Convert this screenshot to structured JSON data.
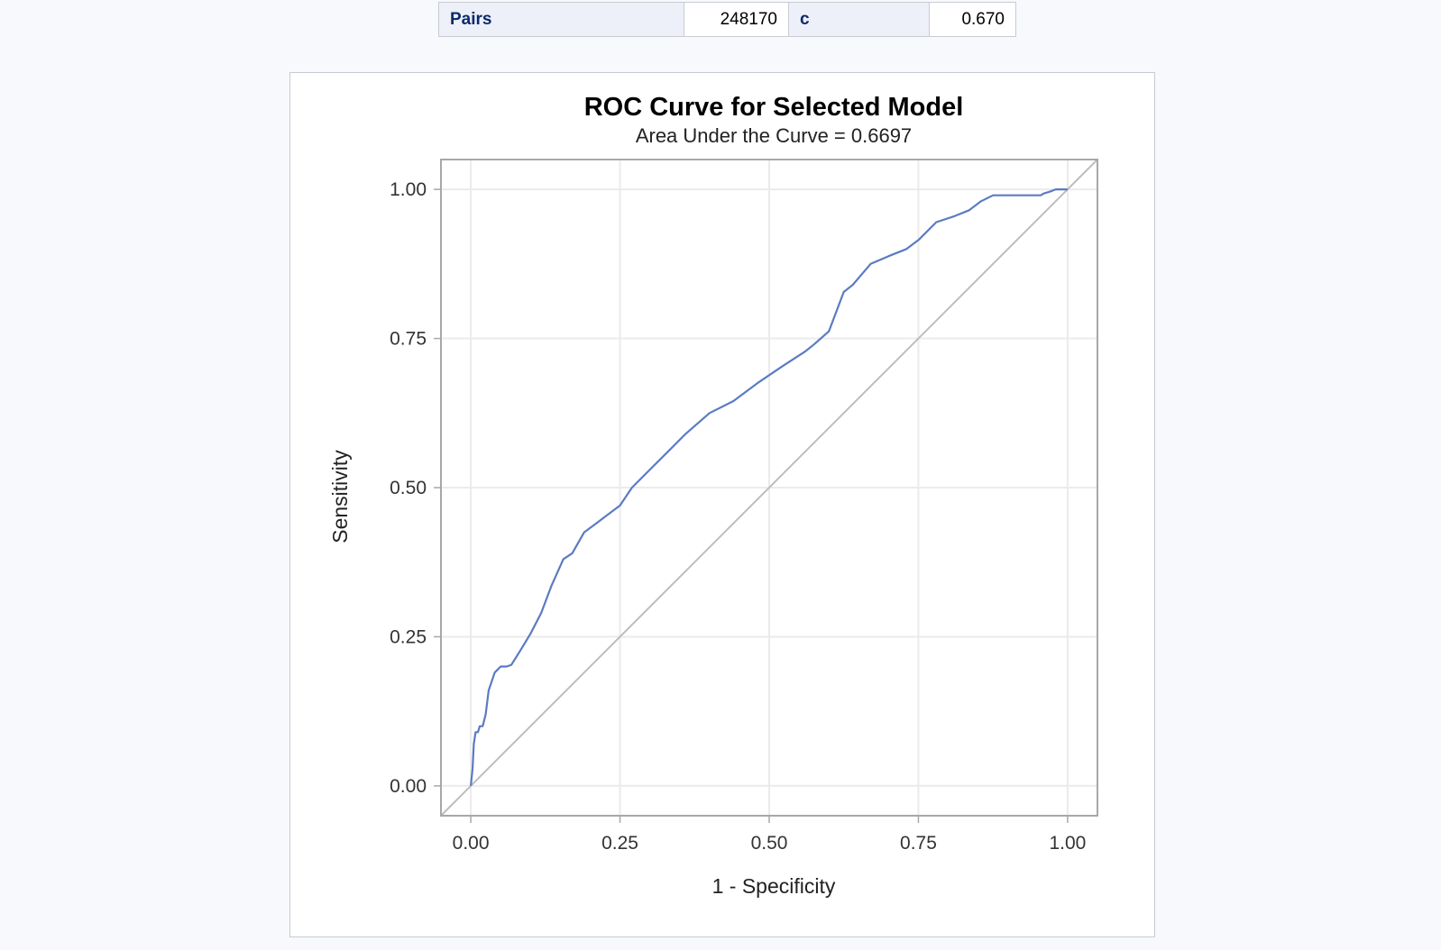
{
  "stats_table": {
    "pairs_label": "Pairs",
    "pairs_value": "248170",
    "c_label": "c",
    "c_value": "0.670"
  },
  "colors": {
    "roc_line": "#5b7bc2",
    "diagonal": "#bdbdbd",
    "grid": "#ebebeb",
    "axis_frame": "#a8a8a8"
  },
  "chart_data": {
    "type": "line",
    "title": "ROC Curve for Selected Model",
    "subtitle": "Area Under the Curve = 0.6697",
    "xlabel": "1 - Specificity",
    "ylabel": "Sensitivity",
    "xlim": [
      -0.05,
      1.05
    ],
    "ylim": [
      -0.05,
      1.05
    ],
    "xticks": [
      "0.00",
      "0.25",
      "0.50",
      "0.75",
      "1.00"
    ],
    "yticks": [
      "0.00",
      "0.25",
      "0.50",
      "0.75",
      "1.00"
    ],
    "grid": true,
    "series": [
      {
        "x": [
          0.0,
          0.003,
          0.005,
          0.008,
          0.012,
          0.015,
          0.02,
          0.025,
          0.03,
          0.04,
          0.05,
          0.06,
          0.068,
          0.085,
          0.1,
          0.118,
          0.135,
          0.155,
          0.17,
          0.19,
          0.21,
          0.23,
          0.25,
          0.27,
          0.3,
          0.33,
          0.36,
          0.4,
          0.44,
          0.48,
          0.52,
          0.56,
          0.575,
          0.6,
          0.625,
          0.64,
          0.67,
          0.7,
          0.73,
          0.75,
          0.78,
          0.81,
          0.835,
          0.855,
          0.875,
          0.9,
          0.94,
          0.955,
          0.96,
          0.97,
          0.98,
          0.99,
          1.0
        ],
        "y": [
          0.0,
          0.03,
          0.07,
          0.09,
          0.09,
          0.1,
          0.1,
          0.12,
          0.16,
          0.19,
          0.2,
          0.2,
          0.203,
          0.23,
          0.255,
          0.29,
          0.335,
          0.38,
          0.39,
          0.425,
          0.44,
          0.455,
          0.47,
          0.5,
          0.53,
          0.56,
          0.59,
          0.625,
          0.645,
          0.675,
          0.702,
          0.728,
          0.74,
          0.762,
          0.828,
          0.84,
          0.875,
          0.888,
          0.9,
          0.915,
          0.945,
          0.955,
          0.965,
          0.98,
          0.99,
          0.99,
          0.99,
          0.99,
          0.993,
          0.996,
          1.0,
          1.0,
          1.0
        ]
      },
      {
        "x": [
          -0.05,
          1.05
        ],
        "y": [
          -0.05,
          1.05
        ]
      }
    ]
  }
}
